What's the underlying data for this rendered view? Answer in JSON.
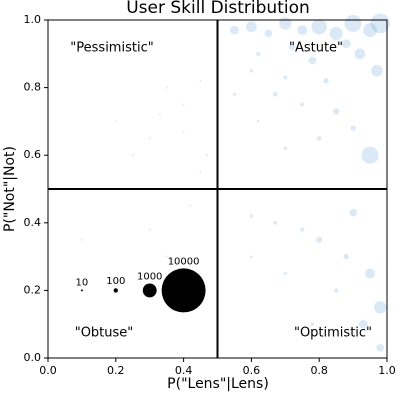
{
  "chart_data": {
    "type": "scatter",
    "title": "User Skill Distribution",
    "x_label": "P(\"Lens\"|Lens)",
    "y_label": "P(\"Not\"|Not)",
    "xlim": [
      0,
      1
    ],
    "ylim": [
      0,
      1
    ],
    "xticks": [
      {
        "value": 0,
        "label": "0.0"
      },
      0.2,
      0.4,
      0.6,
      0.8,
      {
        "value": 1,
        "label": "1.0"
      }
    ],
    "yticks": [
      {
        "value": 0,
        "label": "0.0"
      },
      0.2,
      0.4,
      0.6,
      0.8,
      {
        "value": 1,
        "label": "1.0"
      }
    ],
    "dividers": {
      "x": 0.5,
      "y": 0.5
    },
    "annotations": [
      "\"Pessimistic\"",
      "\"Astute\"",
      "\"Obtuse\"",
      "\"Optimistic\""
    ],
    "series": [
      {
        "color": "#5b9bd5",
        "x": [
          0.55,
          0.6,
          0.65,
          0.7,
          0.75,
          0.8,
          0.85,
          0.9,
          0.95,
          0.98,
          0.88,
          0.72,
          0.62,
          0.78,
          0.92,
          0.97,
          0.82,
          0.7,
          0.6,
          0.67,
          0.75,
          0.85,
          0.9,
          0.8,
          0.95,
          0.7,
          0.62,
          0.55,
          0.45,
          0.4,
          0.35,
          0.33,
          0.4,
          0.3,
          0.47,
          0.6,
          0.67,
          0.75,
          0.8,
          0.9,
          0.88,
          0.95,
          0.98,
          0.93,
          0.85,
          0.7,
          0.6,
          0.78,
          0.98,
          0.2,
          0.25,
          0.45,
          0.3,
          0.42,
          0.35,
          0.1
        ],
        "y": [
          0.97,
          0.98,
          0.96,
          0.99,
          0.97,
          0.98,
          0.96,
          0.99,
          0.97,
          0.99,
          0.93,
          0.92,
          0.9,
          0.88,
          0.9,
          0.85,
          0.82,
          0.83,
          0.85,
          0.78,
          0.75,
          0.73,
          0.68,
          0.65,
          0.6,
          0.62,
          0.7,
          0.78,
          0.82,
          0.75,
          0.8,
          0.72,
          0.67,
          0.65,
          0.6,
          0.42,
          0.4,
          0.38,
          0.35,
          0.43,
          0.3,
          0.25,
          0.15,
          0.1,
          0.2,
          0.25,
          0.3,
          0.1,
          0.03,
          0.7,
          0.6,
          0.55,
          0.38,
          0.45,
          0.3,
          0.35
        ],
        "sizes": [
          400,
          600,
          300,
          800,
          500,
          1200,
          900,
          1500,
          1000,
          2000,
          400,
          200,
          100,
          300,
          600,
          700,
          150,
          80,
          60,
          100,
          80,
          200,
          150,
          100,
          1500,
          60,
          40,
          50,
          20,
          15,
          10,
          10,
          15,
          8,
          20,
          60,
          80,
          100,
          200,
          300,
          150,
          500,
          800,
          400,
          100,
          50,
          40,
          60,
          300,
          10,
          10,
          20,
          10,
          15,
          10,
          5
        ]
      }
    ],
    "size_legend": {
      "color": "#000000",
      "x": [
        0.1,
        0.2,
        0.3,
        0.4
      ],
      "y": [
        0.2,
        0.2,
        0.2,
        0.2
      ],
      "sizes": [
        10,
        100,
        1000,
        10000
      ]
    }
  }
}
